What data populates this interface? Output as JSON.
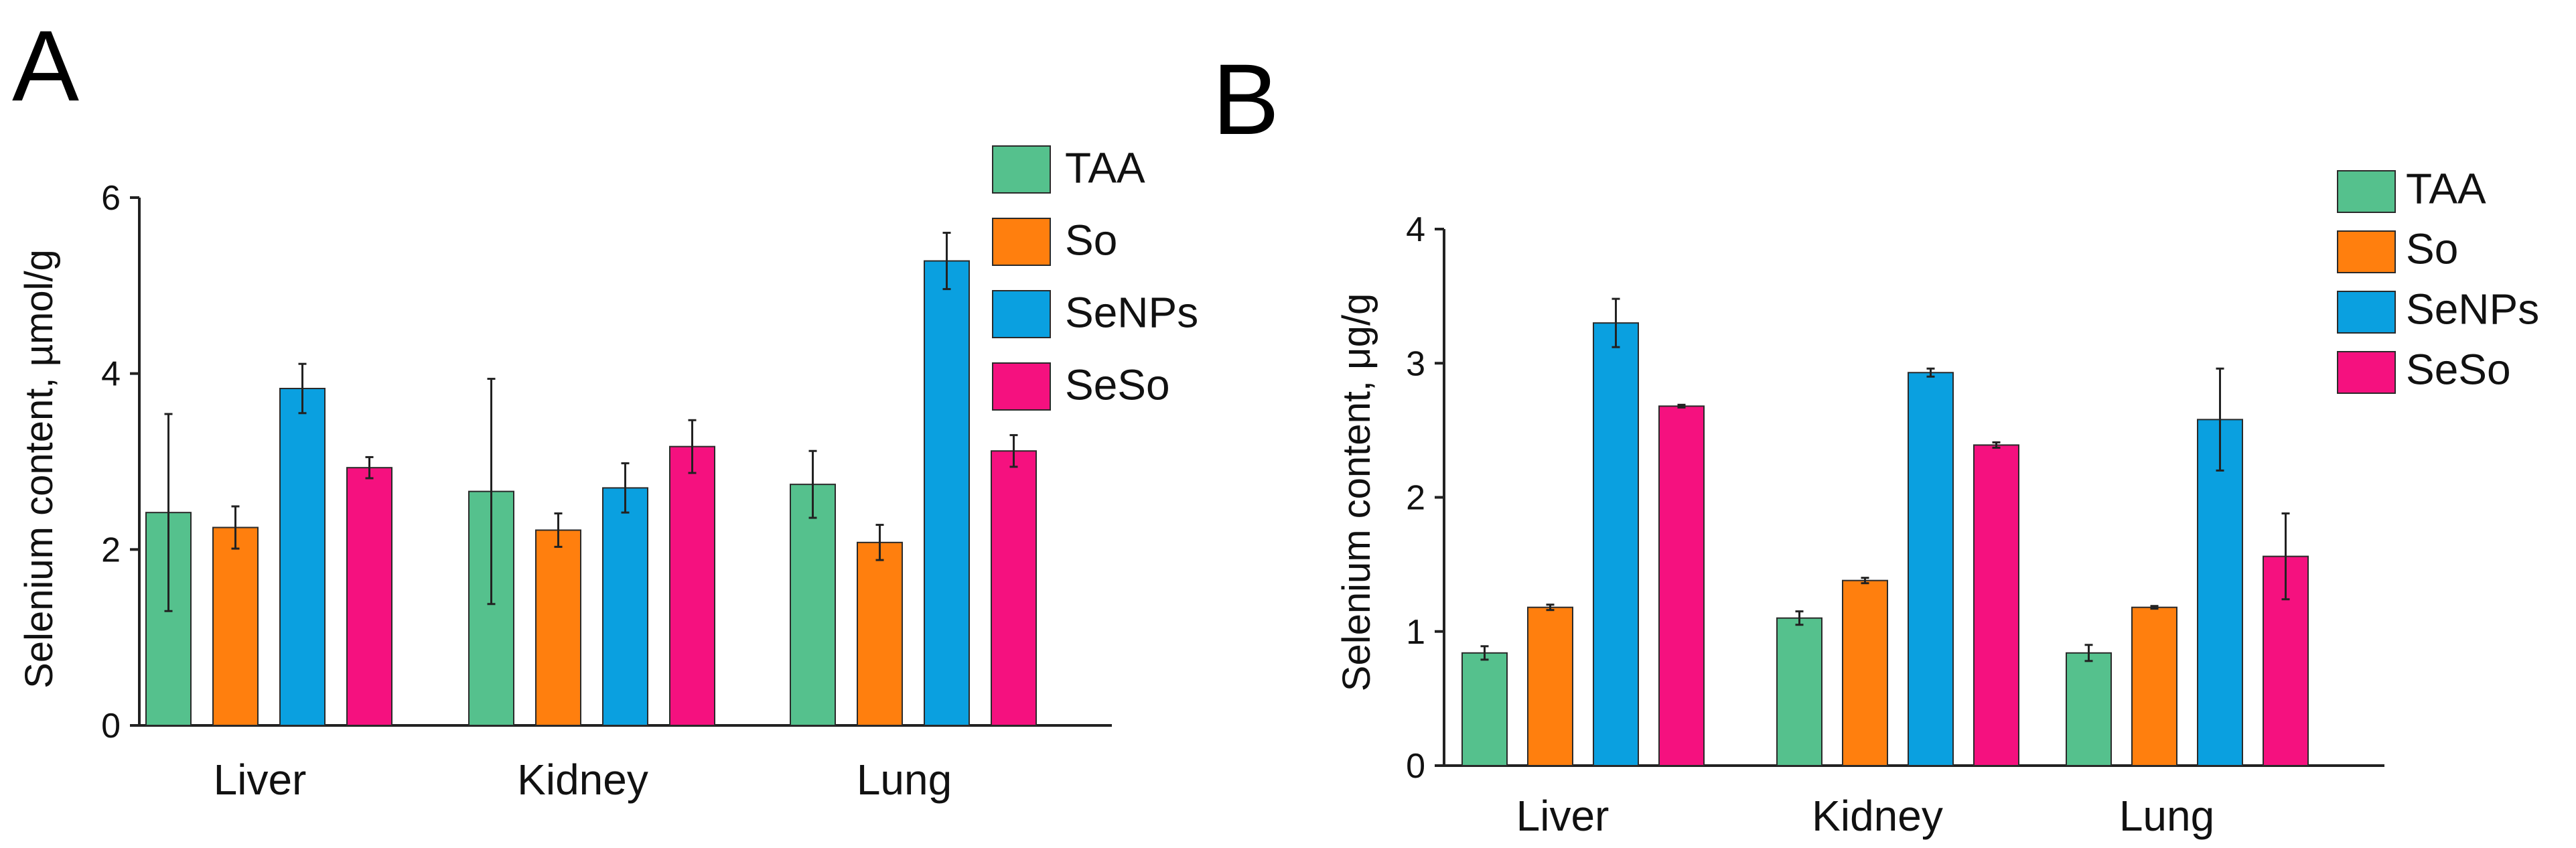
{
  "panels": [
    {
      "letter": "A",
      "chart_data": {
        "type": "bar",
        "title": "",
        "xlabel": "",
        "ylabel": "Selenium content, µmol/g",
        "ylim": [
          0,
          6
        ],
        "yticks": [
          "0",
          "2",
          "4",
          "6"
        ],
        "categories": [
          "Liver",
          "Kidney",
          "Lung"
        ],
        "legend_position": "top-right",
        "series": [
          {
            "name": "TAA",
            "color": "#55c18d",
            "values": [
              2.42,
              2.66,
              2.74
            ],
            "errors": [
              1.12,
              1.28,
              0.38
            ]
          },
          {
            "name": "So",
            "color": "#ff7f0e",
            "values": [
              2.25,
              2.22,
              2.08
            ],
            "errors": [
              0.24,
              0.19,
              0.2
            ]
          },
          {
            "name": "SeNPs",
            "color": "#0aa0e0",
            "values": [
              3.83,
              2.7,
              5.28
            ],
            "errors": [
              0.28,
              0.28,
              0.32
            ]
          },
          {
            "name": "SeSo",
            "color": "#f5117f",
            "values": [
              2.93,
              3.17,
              3.12
            ],
            "errors": [
              0.12,
              0.3,
              0.18
            ]
          }
        ]
      }
    },
    {
      "letter": "B",
      "chart_data": {
        "type": "bar",
        "title": "",
        "xlabel": "",
        "ylabel": "Selenium content, μg/g",
        "ylim": [
          0,
          4
        ],
        "yticks": [
          "0",
          "1",
          "2",
          "3",
          "4"
        ],
        "categories": [
          "Liver",
          "Kidney",
          "Lung"
        ],
        "legend_position": "top-right",
        "series": [
          {
            "name": "TAA",
            "color": "#55c18d",
            "values": [
              0.84,
              1.1,
              0.84
            ],
            "errors": [
              0.05,
              0.05,
              0.06
            ]
          },
          {
            "name": "So",
            "color": "#ff7f0e",
            "values": [
              1.18,
              1.38,
              1.18
            ],
            "errors": [
              0.02,
              0.02,
              0.01
            ]
          },
          {
            "name": "SeNPs",
            "color": "#0aa0e0",
            "values": [
              3.3,
              2.93,
              2.58
            ],
            "errors": [
              0.18,
              0.03,
              0.38
            ]
          },
          {
            "name": "SeSo",
            "color": "#f5117f",
            "values": [
              2.68,
              2.39,
              1.56
            ],
            "errors": [
              0.01,
              0.02,
              0.32
            ]
          }
        ]
      }
    }
  ]
}
